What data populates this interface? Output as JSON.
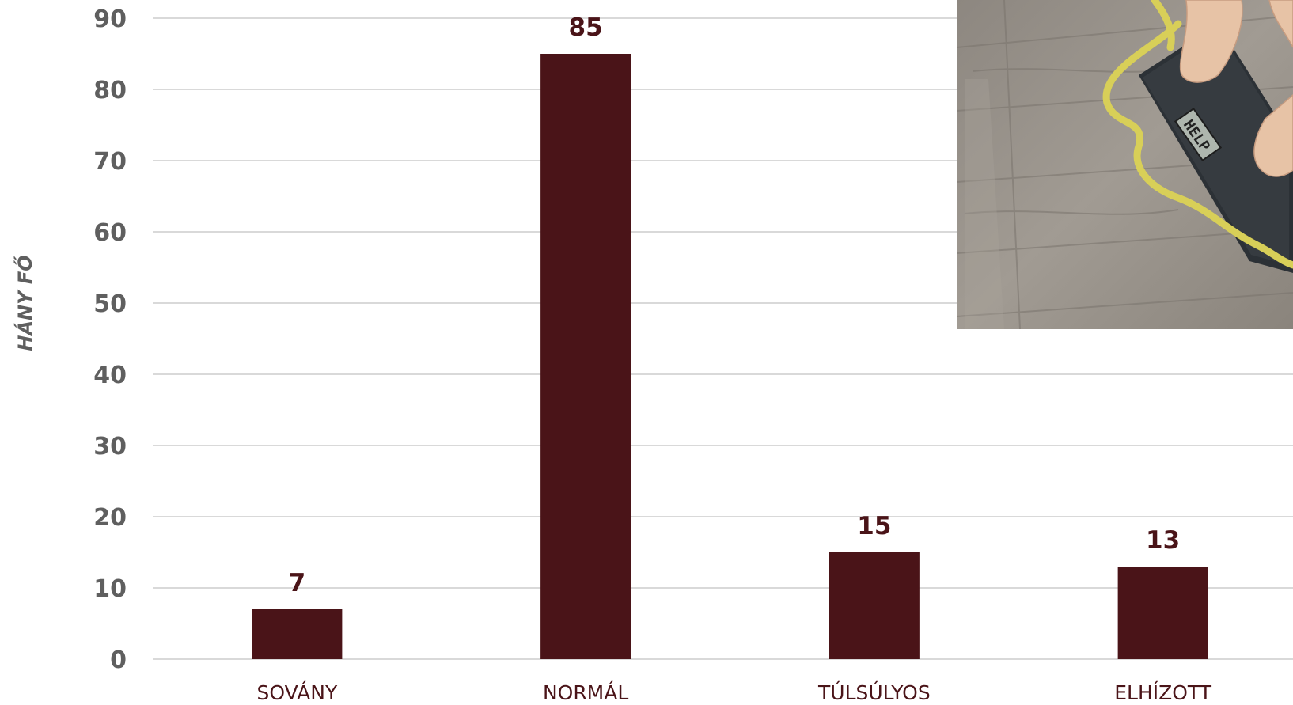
{
  "chart_data": {
    "type": "bar",
    "categories": [
      "SOVÁNY",
      "NORMÁL",
      "TÚLSÚLYOS",
      "ELHÍZOTT"
    ],
    "values": [
      7,
      85,
      15,
      13
    ],
    "ylabel": "HÁNY FŐ",
    "ylim": [
      0,
      90
    ],
    "yticks": [
      0,
      10,
      20,
      30,
      40,
      50,
      60,
      70,
      80,
      90
    ],
    "grid": true,
    "bar_color": "#4a1418"
  },
  "photo": {
    "icon": "bathroom-scale-photo",
    "scale_display": "HELP"
  }
}
